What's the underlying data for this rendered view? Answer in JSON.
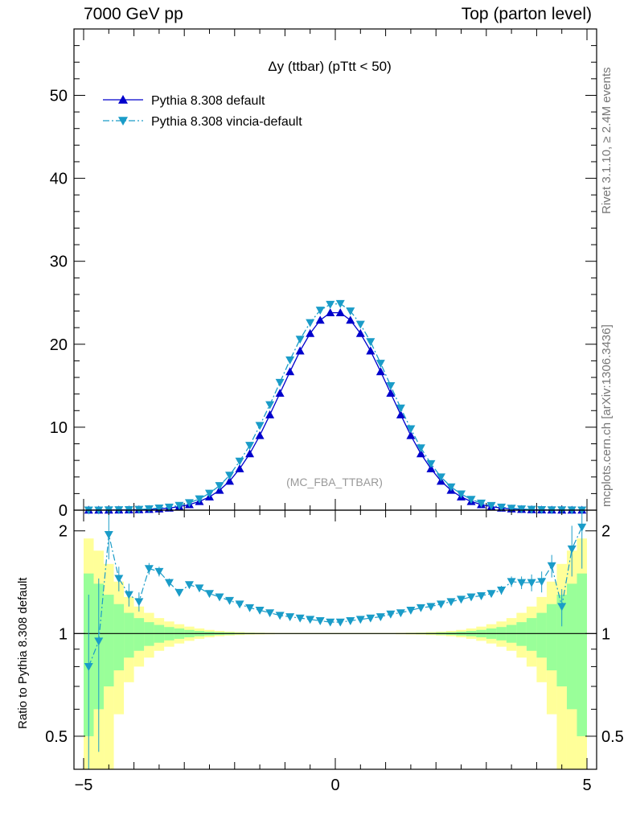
{
  "header": {
    "left": "7000 GeV pp",
    "right": "Top (parton level)"
  },
  "side": {
    "rivet": "Rivet 3.1.10, ≥ 2.4M events",
    "mcplots": "mcplots.cern.ch [arXiv:1306.3436]"
  },
  "chart_data": [
    {
      "type": "line",
      "title": "Δy (ttbar) (pTtt < 50)",
      "watermark": "(MC_FBA_TTBAR)",
      "xlim": [
        -5,
        5
      ],
      "ylim": [
        0,
        58
      ],
      "yticks": [
        "0",
        "10",
        "20",
        "30",
        "40",
        "50"
      ],
      "legend_position": "top-left",
      "series": [
        {
          "name": "Pythia 8.308 default",
          "color": "#0000cc",
          "marker": "triangle-up",
          "x": [
            -4.9,
            -4.7,
            -4.5,
            -4.3,
            -4.1,
            -3.9,
            -3.7,
            -3.5,
            -3.3,
            -3.1,
            -2.9,
            -2.7,
            -2.5,
            -2.3,
            -2.1,
            -1.9,
            -1.7,
            -1.5,
            -1.3,
            -1.1,
            -0.9,
            -0.7,
            -0.5,
            -0.3,
            -0.1,
            0.1,
            0.3,
            0.5,
            0.7,
            0.9,
            1.1,
            1.3,
            1.5,
            1.7,
            1.9,
            2.1,
            2.3,
            2.5,
            2.7,
            2.9,
            3.1,
            3.3,
            3.5,
            3.7,
            3.9,
            4.1,
            4.3,
            4.5,
            4.7,
            4.9
          ],
          "values": [
            0.01,
            0.01,
            0.02,
            0.03,
            0.04,
            0.06,
            0.1,
            0.16,
            0.26,
            0.42,
            0.67,
            1.05,
            1.6,
            2.4,
            3.5,
            5.0,
            6.8,
            9.0,
            11.5,
            14.1,
            16.7,
            19.2,
            21.3,
            22.9,
            23.8,
            23.8,
            22.9,
            21.3,
            19.2,
            16.7,
            14.1,
            11.5,
            9.0,
            6.8,
            5.0,
            3.5,
            2.4,
            1.6,
            1.05,
            0.67,
            0.42,
            0.26,
            0.16,
            0.1,
            0.06,
            0.04,
            0.03,
            0.02,
            0.01,
            0.01
          ]
        },
        {
          "name": "Pythia 8.308 vincia-default",
          "color": "#1a9cc8",
          "marker": "triangle-down",
          "x": [
            -4.9,
            -4.7,
            -4.5,
            -4.3,
            -4.1,
            -3.9,
            -3.7,
            -3.5,
            -3.3,
            -3.1,
            -2.9,
            -2.7,
            -2.5,
            -2.3,
            -2.1,
            -1.9,
            -1.7,
            -1.5,
            -1.3,
            -1.1,
            -0.9,
            -0.7,
            -0.5,
            -0.3,
            -0.1,
            0.1,
            0.3,
            0.5,
            0.7,
            0.9,
            1.1,
            1.3,
            1.5,
            1.7,
            1.9,
            2.1,
            2.3,
            2.5,
            2.7,
            2.9,
            3.1,
            3.3,
            3.5,
            3.7,
            3.9,
            4.1,
            4.3,
            4.5,
            4.7,
            4.9
          ],
          "values": [
            0.01,
            0.01,
            0.03,
            0.05,
            0.06,
            0.09,
            0.16,
            0.25,
            0.36,
            0.57,
            0.89,
            1.35,
            2.04,
            2.95,
            4.2,
            5.9,
            7.8,
            10.2,
            12.7,
            15.4,
            18.1,
            20.6,
            22.6,
            24.1,
            24.8,
            24.9,
            24.0,
            22.4,
            20.3,
            17.7,
            15.0,
            12.3,
            9.8,
            7.5,
            5.6,
            4.0,
            2.8,
            1.95,
            1.3,
            0.85,
            0.55,
            0.36,
            0.23,
            0.14,
            0.09,
            0.06,
            0.04,
            0.03,
            0.02,
            0.01
          ]
        }
      ]
    },
    {
      "type": "line",
      "ylabel": "Ratio to Pythia 8.308 default",
      "xlim": [
        -5,
        5
      ],
      "ylim": [
        0.4,
        2.3
      ],
      "yscale": "log",
      "yticks": [
        "0.5",
        "1",
        "2"
      ],
      "xticks": [
        "−5",
        "0",
        "5"
      ],
      "band_colors": {
        "inner": "#99ff99",
        "outer": "#ffff99"
      },
      "bands": {
        "x": [
          -4.9,
          -4.7,
          -4.5,
          -4.3,
          -4.1,
          -3.9,
          -3.7,
          -3.5,
          -3.3,
          -3.1,
          -2.9,
          -2.7,
          -2.5,
          -2.3,
          -2.1,
          -1.9,
          -1.7,
          -1.5,
          -1.3,
          -1.1,
          -0.9,
          -0.7,
          -0.5,
          -0.3,
          -0.1,
          0.1,
          0.3,
          0.5,
          0.7,
          0.9,
          1.1,
          1.3,
          1.5,
          1.7,
          1.9,
          2.1,
          2.3,
          2.5,
          2.7,
          2.9,
          3.1,
          3.3,
          3.5,
          3.7,
          3.9,
          4.1,
          4.3,
          4.5,
          4.7,
          4.9
        ],
        "inner_rel": [
          0.5,
          0.4,
          0.3,
          0.22,
          0.15,
          0.11,
          0.08,
          0.06,
          0.045,
          0.035,
          0.025,
          0.018,
          0.013,
          0.009,
          0.007,
          0.005,
          0.004,
          0.003,
          0.002,
          0.002,
          0.002,
          0.002,
          0.002,
          0.002,
          0.002,
          0.002,
          0.002,
          0.002,
          0.002,
          0.002,
          0.002,
          0.002,
          0.003,
          0.004,
          0.005,
          0.007,
          0.009,
          0.013,
          0.018,
          0.025,
          0.035,
          0.045,
          0.06,
          0.08,
          0.11,
          0.15,
          0.22,
          0.3,
          0.4,
          0.5
        ],
        "outer_rel": [
          0.9,
          0.75,
          0.6,
          0.42,
          0.28,
          0.2,
          0.15,
          0.11,
          0.085,
          0.065,
          0.048,
          0.035,
          0.025,
          0.018,
          0.013,
          0.01,
          0.007,
          0.006,
          0.005,
          0.004,
          0.004,
          0.004,
          0.004,
          0.004,
          0.004,
          0.004,
          0.004,
          0.004,
          0.004,
          0.004,
          0.004,
          0.005,
          0.006,
          0.007,
          0.01,
          0.013,
          0.018,
          0.025,
          0.035,
          0.048,
          0.065,
          0.085,
          0.11,
          0.15,
          0.2,
          0.28,
          0.42,
          0.6,
          0.75,
          0.9
        ]
      },
      "series": [
        {
          "name": "Pythia 8.308 vincia-default",
          "color": "#1a9cc8",
          "marker": "triangle-down",
          "x": [
            -4.9,
            -4.7,
            -4.5,
            -4.3,
            -4.1,
            -3.9,
            -3.7,
            -3.5,
            -3.3,
            -3.1,
            -2.9,
            -2.7,
            -2.5,
            -2.3,
            -2.1,
            -1.9,
            -1.7,
            -1.5,
            -1.3,
            -1.1,
            -0.9,
            -0.7,
            -0.5,
            -0.3,
            -0.1,
            0.1,
            0.3,
            0.5,
            0.7,
            0.9,
            1.1,
            1.3,
            1.5,
            1.7,
            1.9,
            2.1,
            2.3,
            2.5,
            2.7,
            2.9,
            3.1,
            3.3,
            3.5,
            3.7,
            3.9,
            4.1,
            4.3,
            4.5,
            4.7,
            4.9
          ],
          "values": [
            0.8,
            0.95,
            1.95,
            1.45,
            1.3,
            1.24,
            1.55,
            1.52,
            1.41,
            1.32,
            1.39,
            1.36,
            1.31,
            1.28,
            1.25,
            1.22,
            1.19,
            1.17,
            1.15,
            1.13,
            1.12,
            1.11,
            1.1,
            1.09,
            1.08,
            1.08,
            1.09,
            1.1,
            1.11,
            1.12,
            1.14,
            1.15,
            1.17,
            1.19,
            1.2,
            1.22,
            1.24,
            1.26,
            1.28,
            1.29,
            1.31,
            1.34,
            1.42,
            1.41,
            1.41,
            1.42,
            1.58,
            1.2,
            1.77,
            2.05
          ],
          "err_low": [
            0.5,
            0.5,
            0.3,
            0.12,
            0.1,
            0.08,
            0.06,
            0.05,
            0.04,
            0.03,
            0.02,
            0.02,
            0.02,
            0.02,
            0.02,
            0.02,
            0.02,
            0.02,
            0.02,
            0.02,
            0.02,
            0.02,
            0.02,
            0.02,
            0.02,
            0.02,
            0.02,
            0.02,
            0.02,
            0.02,
            0.02,
            0.02,
            0.02,
            0.02,
            0.02,
            0.02,
            0.02,
            0.02,
            0.02,
            0.02,
            0.03,
            0.04,
            0.05,
            0.06,
            0.08,
            0.1,
            0.12,
            0.15,
            0.3,
            0.5
          ],
          "err_high": [
            0.5,
            0.5,
            0.3,
            0.12,
            0.1,
            0.08,
            0.06,
            0.05,
            0.04,
            0.03,
            0.02,
            0.02,
            0.02,
            0.02,
            0.02,
            0.02,
            0.02,
            0.02,
            0.02,
            0.02,
            0.02,
            0.02,
            0.02,
            0.02,
            0.02,
            0.02,
            0.02,
            0.02,
            0.02,
            0.02,
            0.02,
            0.02,
            0.02,
            0.02,
            0.02,
            0.02,
            0.02,
            0.02,
            0.02,
            0.02,
            0.03,
            0.04,
            0.05,
            0.06,
            0.08,
            0.1,
            0.12,
            0.15,
            0.3,
            0.5
          ]
        }
      ]
    }
  ]
}
